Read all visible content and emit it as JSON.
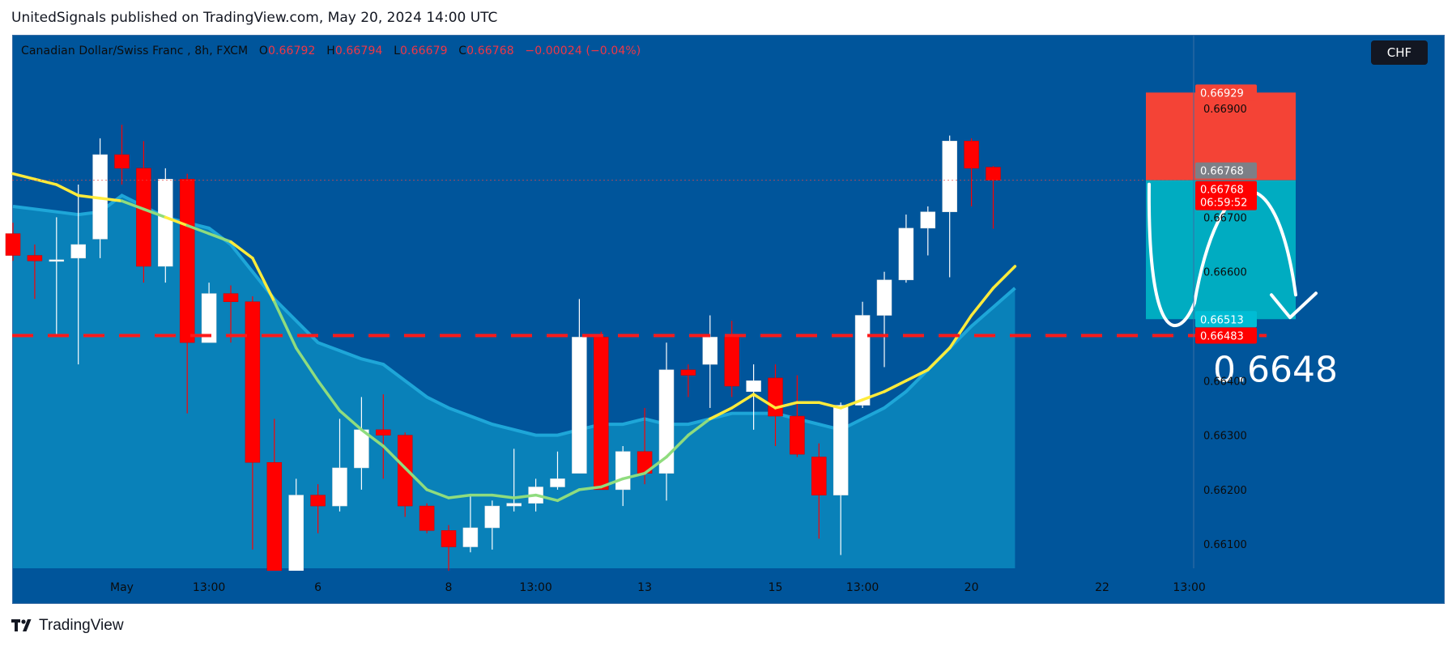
{
  "header": {
    "text": "UnitedSignals published on TradingView.com, May 20, 2024 14:00 UTC"
  },
  "legend": {
    "symbol": "Canadian Dollar/Swiss Franc , 8h, FXCM",
    "o_label": "O",
    "o_value": "0.66792",
    "h_label": "H",
    "h_value": "0.66794",
    "l_label": "L",
    "l_value": "0.66679",
    "c_label": "C",
    "c_value": "0.66768",
    "change": "−0.00024 (−0.04%)"
  },
  "currency_tag": "CHF",
  "footer": {
    "brand": "TradingView",
    "icon": "tradingview-logo-icon"
  },
  "colors": {
    "background": "#00559b",
    "up_candle": "#ffffff",
    "down_candle": "#ff0000",
    "ma_fast": "#ffeb3b",
    "ma_fast_below": "#8fdc7e",
    "area_fill": "#0a86bd",
    "support_line": "#ff1a1a",
    "stop_zone": "#f44336",
    "target_zone": "#00acc1"
  },
  "chart_data": {
    "type": "candlestick",
    "symbol": "CADCHF",
    "timeframe": "8h",
    "ylim": [
      0.6602,
      0.6698
    ],
    "price_ticks": [
      "0.66900",
      "0.66700",
      "0.66600",
      "0.66400",
      "0.66300",
      "0.66200",
      "0.66100"
    ],
    "x_tick_labels": [
      {
        "label": "May",
        "i": 5
      },
      {
        "label": "13:00",
        "i": 9
      },
      {
        "label": "6",
        "i": 14
      },
      {
        "label": "8",
        "i": 20
      },
      {
        "label": "13:00",
        "i": 24
      },
      {
        "label": "13",
        "i": 29
      },
      {
        "label": "15",
        "i": 35
      },
      {
        "label": "13:00",
        "i": 39
      },
      {
        "label": "20",
        "i": 44
      },
      {
        "label": "22",
        "i": 50
      },
      {
        "label": "13:00",
        "i": 54
      }
    ],
    "candles": [
      {
        "o": 0.6667,
        "h": 0.6669,
        "l": 0.6662,
        "c": 0.6663
      },
      {
        "o": 0.6663,
        "h": 0.6665,
        "l": 0.6655,
        "c": 0.6662
      },
      {
        "o": 0.6662,
        "h": 0.667,
        "l": 0.6648,
        "c": 0.66622
      },
      {
        "o": 0.66625,
        "h": 0.6676,
        "l": 0.6643,
        "c": 0.6665
      },
      {
        "o": 0.6666,
        "h": 0.66845,
        "l": 0.66625,
        "c": 0.66815
      },
      {
        "o": 0.66815,
        "h": 0.6687,
        "l": 0.6676,
        "c": 0.6679
      },
      {
        "o": 0.6679,
        "h": 0.6684,
        "l": 0.6658,
        "c": 0.6661
      },
      {
        "o": 0.6661,
        "h": 0.6679,
        "l": 0.6658,
        "c": 0.6677
      },
      {
        "o": 0.6677,
        "h": 0.6678,
        "l": 0.6634,
        "c": 0.6647
      },
      {
        "o": 0.6647,
        "h": 0.6658,
        "l": 0.6647,
        "c": 0.6656
      },
      {
        "o": 0.6656,
        "h": 0.66575,
        "l": 0.6647,
        "c": 0.66545
      },
      {
        "o": 0.66545,
        "h": 0.66555,
        "l": 0.6609,
        "c": 0.6625
      },
      {
        "o": 0.6625,
        "h": 0.6633,
        "l": 0.6604,
        "c": 0.6604
      },
      {
        "o": 0.6604,
        "h": 0.6622,
        "l": 0.6604,
        "c": 0.6619
      },
      {
        "o": 0.6619,
        "h": 0.6621,
        "l": 0.6612,
        "c": 0.6617
      },
      {
        "o": 0.6617,
        "h": 0.6633,
        "l": 0.6616,
        "c": 0.6624
      },
      {
        "o": 0.6624,
        "h": 0.6637,
        "l": 0.662,
        "c": 0.6631
      },
      {
        "o": 0.6631,
        "h": 0.66375,
        "l": 0.6622,
        "c": 0.663
      },
      {
        "o": 0.663,
        "h": 0.66305,
        "l": 0.6615,
        "c": 0.6617
      },
      {
        "o": 0.6617,
        "h": 0.66175,
        "l": 0.6612,
        "c": 0.66125
      },
      {
        "o": 0.66125,
        "h": 0.66135,
        "l": 0.6602,
        "c": 0.66095
      },
      {
        "o": 0.66095,
        "h": 0.6619,
        "l": 0.66085,
        "c": 0.6613
      },
      {
        "o": 0.6613,
        "h": 0.6618,
        "l": 0.6609,
        "c": 0.6617
      },
      {
        "o": 0.6617,
        "h": 0.66275,
        "l": 0.6616,
        "c": 0.66175
      },
      {
        "o": 0.66175,
        "h": 0.6622,
        "l": 0.6616,
        "c": 0.66205
      },
      {
        "o": 0.66205,
        "h": 0.6627,
        "l": 0.662,
        "c": 0.6622
      },
      {
        "o": 0.6623,
        "h": 0.6655,
        "l": 0.6623,
        "c": 0.6648
      },
      {
        "o": 0.6648,
        "h": 0.6649,
        "l": 0.662,
        "c": 0.662
      },
      {
        "o": 0.662,
        "h": 0.6628,
        "l": 0.6617,
        "c": 0.6627
      },
      {
        "o": 0.6627,
        "h": 0.6635,
        "l": 0.6621,
        "c": 0.6623
      },
      {
        "o": 0.6623,
        "h": 0.6647,
        "l": 0.6618,
        "c": 0.6642
      },
      {
        "o": 0.6642,
        "h": 0.6643,
        "l": 0.6637,
        "c": 0.6641
      },
      {
        "o": 0.6643,
        "h": 0.6652,
        "l": 0.6635,
        "c": 0.6648
      },
      {
        "o": 0.6648,
        "h": 0.6651,
        "l": 0.6637,
        "c": 0.6639
      },
      {
        "o": 0.6638,
        "h": 0.6643,
        "l": 0.6631,
        "c": 0.664
      },
      {
        "o": 0.66405,
        "h": 0.6643,
        "l": 0.6628,
        "c": 0.66335
      },
      {
        "o": 0.66335,
        "h": 0.6641,
        "l": 0.6626,
        "c": 0.66265
      },
      {
        "o": 0.6626,
        "h": 0.66285,
        "l": 0.6611,
        "c": 0.6619
      },
      {
        "o": 0.6619,
        "h": 0.6636,
        "l": 0.6608,
        "c": 0.66355
      },
      {
        "o": 0.66355,
        "h": 0.66545,
        "l": 0.6635,
        "c": 0.6652
      },
      {
        "o": 0.6652,
        "h": 0.666,
        "l": 0.66425,
        "c": 0.66585
      },
      {
        "o": 0.66585,
        "h": 0.66705,
        "l": 0.6658,
        "c": 0.6668
      },
      {
        "o": 0.6668,
        "h": 0.6672,
        "l": 0.6663,
        "c": 0.6671
      },
      {
        "o": 0.6671,
        "h": 0.6685,
        "l": 0.6659,
        "c": 0.6684
      },
      {
        "o": 0.6684,
        "h": 0.66845,
        "l": 0.6672,
        "c": 0.6679
      },
      {
        "o": 0.66792,
        "h": 0.66794,
        "l": 0.66679,
        "c": 0.66768
      }
    ],
    "ma_fast": [
      0.6678,
      0.6677,
      0.6676,
      0.6674,
      0.66735,
      0.6673,
      0.66715,
      0.667,
      0.66685,
      0.6667,
      0.66655,
      0.66625,
      0.66545,
      0.6646,
      0.664,
      0.66345,
      0.6631,
      0.6628,
      0.6624,
      0.662,
      0.66185,
      0.6619,
      0.6619,
      0.66185,
      0.6619,
      0.6618,
      0.662,
      0.66205,
      0.6622,
      0.6623,
      0.6626,
      0.663,
      0.6633,
      0.6635,
      0.66375,
      0.6635,
      0.6636,
      0.6636,
      0.6635,
      0.66365,
      0.6638,
      0.664,
      0.6642,
      0.6646,
      0.6652,
      0.6657,
      0.6661
    ],
    "area_line": [
      0.6672,
      0.66715,
      0.6671,
      0.66705,
      0.6671,
      0.6674,
      0.6672,
      0.667,
      0.6669,
      0.6668,
      0.6665,
      0.666,
      0.6655,
      0.6651,
      0.6647,
      0.66455,
      0.6644,
      0.6643,
      0.664,
      0.6637,
      0.6635,
      0.66335,
      0.6632,
      0.6631,
      0.663,
      0.663,
      0.6631,
      0.6632,
      0.6632,
      0.6633,
      0.6632,
      0.6632,
      0.6633,
      0.6634,
      0.6634,
      0.6634,
      0.6633,
      0.6632,
      0.6631,
      0.6633,
      0.6635,
      0.6638,
      0.6642,
      0.6646,
      0.665,
      0.66535,
      0.6657
    ],
    "horizontal_levels": [
      {
        "price": 0.66483,
        "label": "0.66483",
        "style": "dashed",
        "color": "#ff1a1a"
      }
    ],
    "price_labels": [
      {
        "price": 0.66929,
        "label": "0.66929",
        "bg": "#f44336"
      },
      {
        "price": 0.66768,
        "label": "0.66768",
        "bg": "#7d7f86",
        "offset": -12
      },
      {
        "price": 0.66768,
        "label": "0.66768",
        "sub": "06:59:52",
        "bg": "#ff0000",
        "offset": 11
      },
      {
        "price": 0.66513,
        "label": "0.66513",
        "bg": "#00bcd4"
      },
      {
        "price": 0.66483,
        "label": "0.66483",
        "bg": "#ff0000"
      }
    ],
    "position_tool": {
      "entry": 0.66768,
      "stop": 0.66929,
      "target": 0.66513,
      "stop_color": "#f44336",
      "target_color": "#00acc1"
    },
    "annotation": {
      "text": "0.6648"
    }
  }
}
